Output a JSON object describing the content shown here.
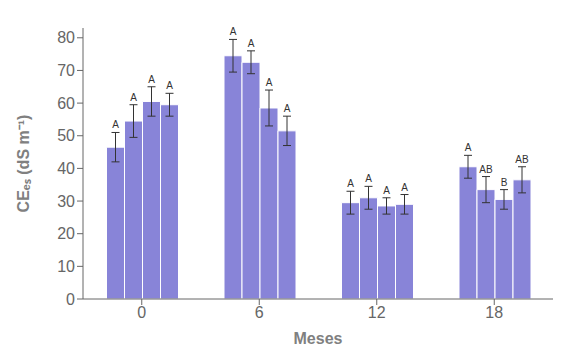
{
  "chart_data": {
    "type": "bar",
    "xlabel": "Meses",
    "ylabel": "CEₑₛ (dS m⁻¹)",
    "categories": [
      "0",
      "6",
      "12",
      "18"
    ],
    "color": "#8884d8",
    "series": [
      {
        "values": [
          46.5,
          74.5,
          29.5,
          40.5
        ],
        "errors": [
          4.5,
          5.0,
          3.5,
          3.5
        ],
        "annotations": [
          "A",
          "A",
          "A",
          "A"
        ]
      },
      {
        "values": [
          54.5,
          72.5,
          31.0,
          33.5
        ],
        "errors": [
          5.0,
          3.5,
          3.5,
          4.0
        ],
        "annotations": [
          "A",
          "A",
          "A",
          "AB"
        ]
      },
      {
        "values": [
          60.5,
          58.5,
          28.5,
          30.5
        ],
        "errors": [
          4.5,
          5.5,
          2.5,
          3.0
        ],
        "annotations": [
          "A",
          "A",
          "A",
          "B"
        ]
      },
      {
        "values": [
          59.5,
          51.5,
          29.0,
          36.5
        ],
        "errors": [
          3.5,
          4.5,
          3.0,
          4.0
        ],
        "annotations": [
          "A",
          "A",
          "A",
          "AB"
        ]
      }
    ],
    "ylim": [
      0,
      83
    ],
    "yticks": [
      0,
      10,
      20,
      30,
      40,
      50,
      60,
      70,
      80
    ],
    "grid": false
  }
}
